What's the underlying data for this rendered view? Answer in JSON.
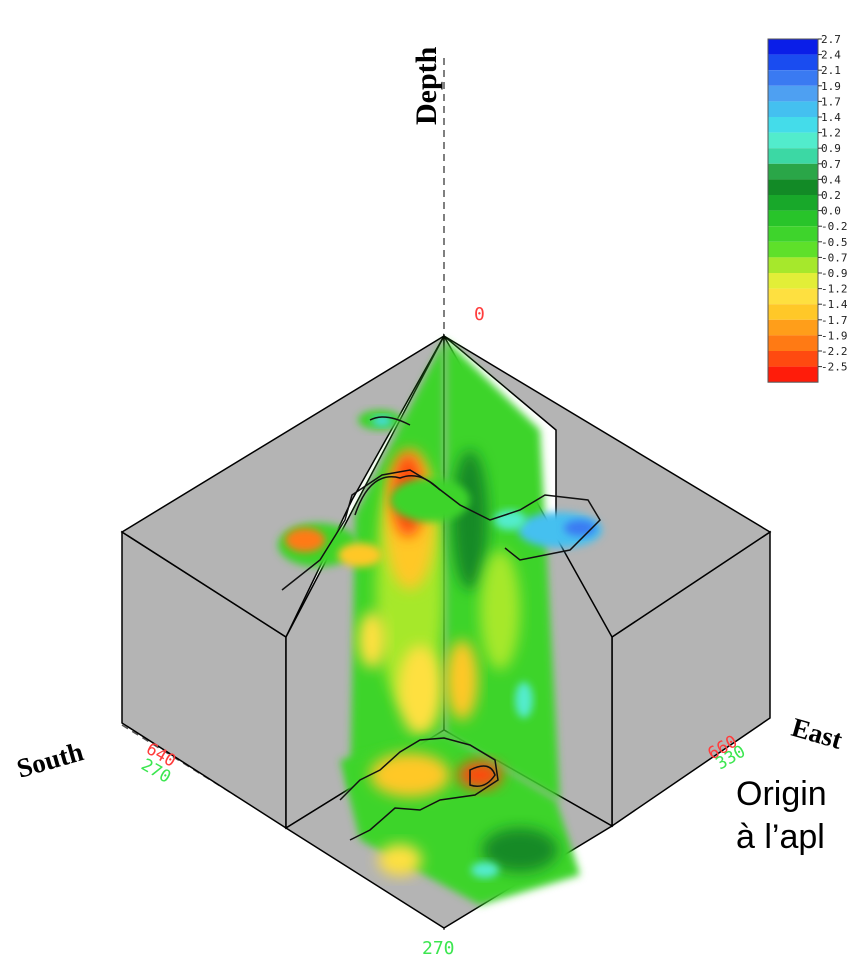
{
  "axes": {
    "depth_label": "Depth",
    "south_label": "South",
    "east_label": "East"
  },
  "ticks": {
    "top_zero": "0",
    "south_top": "640",
    "south_bottom": "270",
    "east_top": "660",
    "east_bottom": "330",
    "bottom": "270"
  },
  "colorbar": {
    "labels": [
      "2.7",
      "2.4",
      "2.1",
      "1.9",
      "1.7",
      "1.4",
      "1.2",
      "0.9",
      "0.7",
      "0.4",
      "0.2",
      "0.0",
      "-0.2",
      "-0.5",
      "-0.7",
      "-0.9",
      "-1.2",
      "-1.4",
      "-1.7",
      "-1.9",
      "-2.2",
      "-2.5"
    ],
    "colors": [
      "#0a1ee8",
      "#1a4cf0",
      "#3a7af2",
      "#4ea0f2",
      "#44c0f0",
      "#44dcea",
      "#52eccc",
      "#3cd8a4",
      "#2aa648",
      "#128a26",
      "#18a82a",
      "#28c42a",
      "#3ed42c",
      "#5ee02a",
      "#a6e82c",
      "#e2ee38",
      "#fee040",
      "#ffc828",
      "#ff9e1a",
      "#ff7a14",
      "#ff4a10",
      "#ff1c0a"
    ]
  },
  "captions": {
    "line1": "Origin",
    "line2": "à l’apl"
  },
  "colors": {
    "box_face": "#b4b4b4",
    "tick_red": "#ff3c3c",
    "tick_green": "#3ce650"
  }
}
